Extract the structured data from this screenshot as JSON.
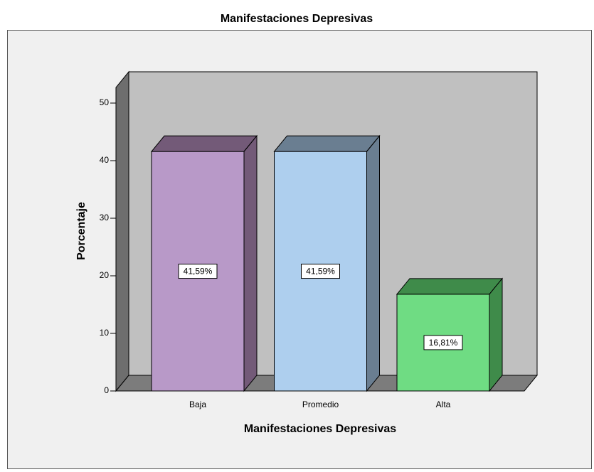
{
  "chart_data": {
    "type": "bar3d",
    "title": "Manifestaciones Depresivas",
    "xlabel": "Manifestaciones Depresivas",
    "ylabel": "Porcentaje",
    "categories": [
      "Baja",
      "Promedio",
      "Alta"
    ],
    "values": [
      41.59,
      41.59,
      16.81
    ],
    "value_labels": [
      "41,59%",
      "41,59%",
      "16,81%"
    ],
    "colors": [
      "#b899c8",
      "#aecfee",
      "#6fdc83"
    ],
    "side_colors": [
      "#735a78",
      "#6a7e91",
      "#3f8b4a"
    ],
    "ylim": [
      0,
      50
    ],
    "yticks": [
      0,
      10,
      20,
      30,
      40,
      50
    ]
  }
}
